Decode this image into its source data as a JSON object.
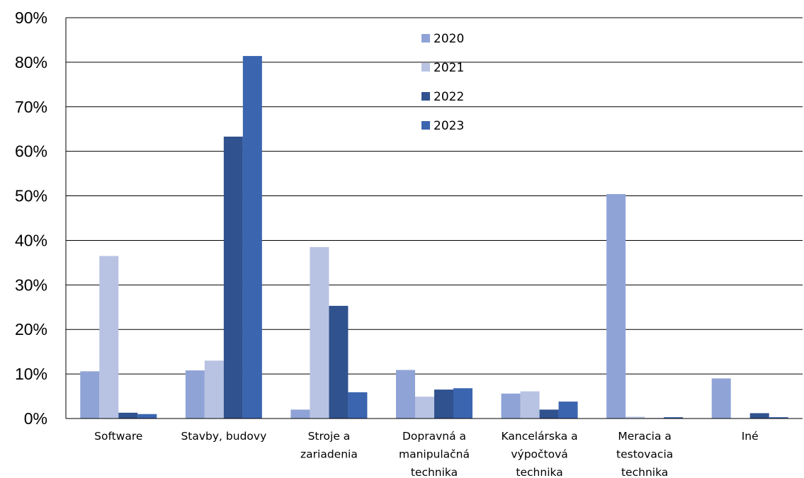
{
  "chart_data": {
    "type": "bar",
    "categories": [
      [
        "Software"
      ],
      [
        "Stavby, budovy"
      ],
      [
        "Stroje a",
        "zariadenia"
      ],
      [
        "Dopravná a",
        "manipulačná",
        "technika"
      ],
      [
        "Kancelárska a",
        "výpočtová",
        "technika"
      ],
      [
        "Meracia a",
        "testovacia",
        "technika"
      ],
      [
        "Iné"
      ]
    ],
    "series": [
      {
        "name": "2020",
        "color": "#8FA3D6",
        "values": [
          10.6,
          10.8,
          2.0,
          10.9,
          5.6,
          50.4,
          9.0
        ]
      },
      {
        "name": "2021",
        "color": "#B8C3E3",
        "values": [
          36.5,
          13.0,
          38.5,
          4.9,
          6.1,
          0.4,
          0.1
        ]
      },
      {
        "name": "2022",
        "color": "#30528F",
        "values": [
          1.3,
          63.3,
          25.3,
          6.5,
          2.0,
          0.1,
          1.2
        ]
      },
      {
        "name": "2023",
        "color": "#3B65AF",
        "values": [
          1.0,
          81.4,
          5.9,
          6.8,
          3.8,
          0.3,
          0.3
        ]
      }
    ],
    "ylim": [
      0,
      90
    ],
    "yticks": [
      0,
      10,
      20,
      30,
      40,
      50,
      60,
      70,
      80,
      90
    ],
    "ytick_labels": [
      "0%",
      "10%",
      "20%",
      "30%",
      "40%",
      "50%",
      "60%",
      "70%",
      "80%",
      "90%"
    ],
    "grid": true,
    "legend_position": "top-center",
    "title": "",
    "xlabel": "",
    "ylabel": ""
  }
}
